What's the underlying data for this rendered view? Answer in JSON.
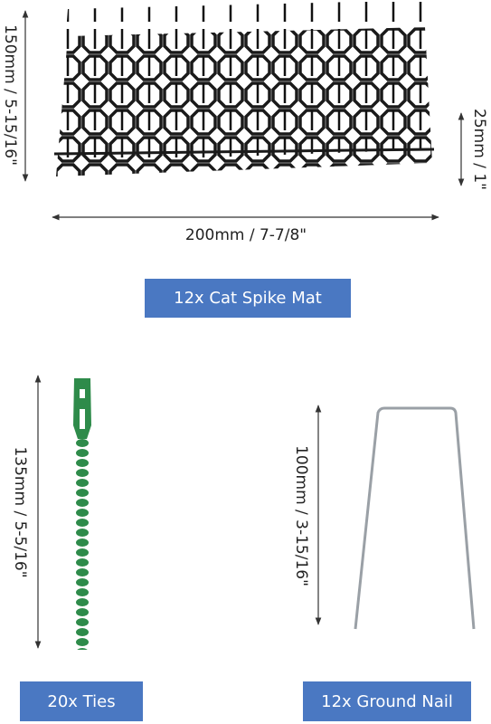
{
  "mat": {
    "height_label": "150mm / 5-15/16\"",
    "spike_label": "25mm / 1\"",
    "width_label": "200mm / 7-7/8\"",
    "button": "12x Cat Spike Mat"
  },
  "ties": {
    "length_label": "135mm / 5-5/16\"",
    "button": "20x Ties"
  },
  "nail": {
    "length_label": "100mm / 3-15/16\"",
    "button": "12x Ground Nail"
  }
}
